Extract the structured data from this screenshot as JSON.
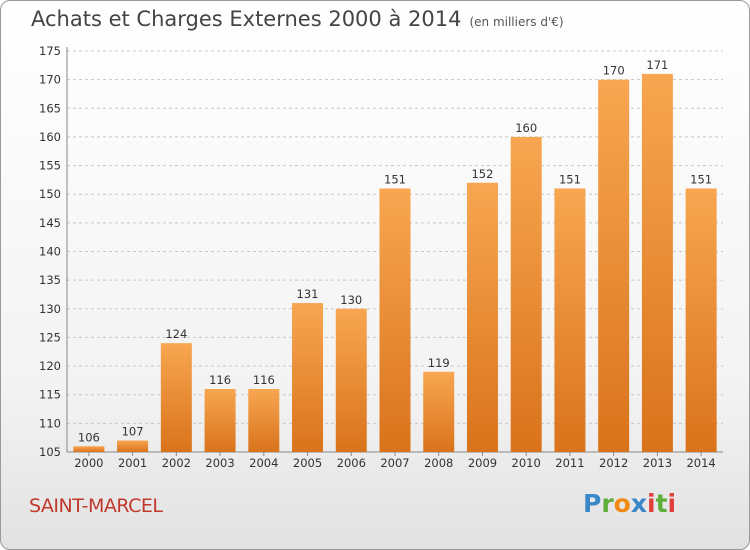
{
  "header": {
    "title": "Achats et Charges Externes 2000 à 2014",
    "unit": "(en milliers d'€)"
  },
  "footer": {
    "city": "SAINT-MARCEL",
    "logo_text": "Proxiti"
  },
  "colors": {
    "bar_top": "#f8a651",
    "bar_bottom": "#d9731b",
    "grid": "#c8c8c8"
  },
  "chart_data": {
    "type": "bar",
    "title": "Achats et Charges Externes 2000 à 2014",
    "subtitle": "(en milliers d'€)",
    "categories": [
      "2000",
      "2001",
      "2002",
      "2003",
      "2004",
      "2005",
      "2006",
      "2007",
      "2008",
      "2009",
      "2010",
      "2011",
      "2012",
      "2013",
      "2014"
    ],
    "values": [
      106,
      107,
      124,
      116,
      116,
      131,
      130,
      151,
      119,
      152,
      160,
      151,
      170,
      171,
      151
    ],
    "ylim": [
      105,
      175
    ],
    "yticks": [
      105,
      110,
      115,
      120,
      125,
      130,
      135,
      140,
      145,
      150,
      155,
      160,
      165,
      170,
      175
    ],
    "grid": true,
    "grid_style": "dashed",
    "legend": "none"
  }
}
